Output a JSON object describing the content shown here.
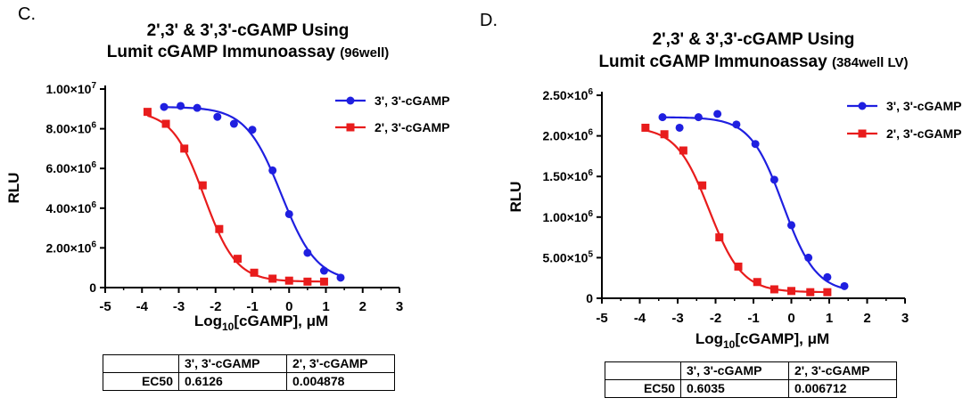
{
  "panels": [
    {
      "letter": "C.",
      "title_line1": "2',3' & 3',3'-cGAMP Using",
      "title_line2": "Lumit cGAMP Immunoassay",
      "title_suffix": "(96well)",
      "ylabel": "RLU",
      "xlabel_main": "Log",
      "xlabel_sub": "10",
      "xlabel_rest": "[cGAMP], μM",
      "x_ticks": [
        "-5",
        "-4",
        "-3",
        "-2",
        "-1",
        "0",
        "1",
        "2",
        "3"
      ],
      "y_ticks": [
        {
          "value": 0,
          "label": "0",
          "exp": ""
        },
        {
          "value": 2000000,
          "label": "2.00×10",
          "exp": "6"
        },
        {
          "value": 4000000,
          "label": "4.00×10",
          "exp": "6"
        },
        {
          "value": 6000000,
          "label": "6.00×10",
          "exp": "6"
        },
        {
          "value": 8000000,
          "label": "8.00×10",
          "exp": "6"
        },
        {
          "value": 10000000,
          "label": "1.00×10",
          "exp": "7"
        }
      ],
      "legend": [
        "3', 3'-cGAMP",
        "2', 3'-cGAMP"
      ],
      "table": {
        "header": [
          "",
          "3', 3'-cGAMP",
          "2', 3'-cGAMP"
        ],
        "row": [
          "EC50",
          "0.6126",
          "0.004878"
        ]
      }
    },
    {
      "letter": "D.",
      "title_line1": "2',3' & 3',3'-cGAMP Using",
      "title_line2": "Lumit cGAMP Immunoassay",
      "title_suffix": "(384well LV)",
      "ylabel": "RLU",
      "xlabel_main": "Log",
      "xlabel_sub": "10",
      "xlabel_rest": "[cGAMP], μM",
      "x_ticks": [
        "-5",
        "-4",
        "-3",
        "-2",
        "-1",
        "0",
        "1",
        "2",
        "3"
      ],
      "y_ticks": [
        {
          "value": 0,
          "label": "0",
          "exp": ""
        },
        {
          "value": 500000,
          "label": "5.00×10",
          "exp": "5"
        },
        {
          "value": 1000000,
          "label": "1.00×10",
          "exp": "6"
        },
        {
          "value": 1500000,
          "label": "1.50×10",
          "exp": "6"
        },
        {
          "value": 2000000,
          "label": "2.00×10",
          "exp": "6"
        },
        {
          "value": 2500000,
          "label": "2.50×10",
          "exp": "6"
        }
      ],
      "legend": [
        "3', 3'-cGAMP",
        "2', 3'-cGAMP"
      ],
      "table": {
        "header": [
          "",
          "3', 3'-cGAMP",
          "2', 3'-cGAMP"
        ],
        "row": [
          "EC50",
          "0.6035",
          "0.006712"
        ]
      }
    }
  ],
  "colors": {
    "series_33": "#1f1fe0",
    "series_23": "#e81c1c",
    "axis": "#000000"
  },
  "chart_data": [
    {
      "type": "scatter",
      "title": "2',3' & 3',3'-cGAMP Using Lumit cGAMP Immunoassay (96well)",
      "xlabel": "Log10[cGAMP], μM",
      "ylabel": "RLU",
      "xlim": [
        -5,
        3
      ],
      "ylim": [
        0,
        10000000
      ],
      "series": [
        {
          "name": "3', 3'-cGAMP",
          "marker": "circle",
          "color": "#1f1fe0",
          "x": [
            -3.4,
            -2.95,
            -2.5,
            -1.95,
            -1.5,
            -1.0,
            -0.45,
            0.0,
            0.5,
            0.95,
            1.4
          ],
          "y": [
            9100000,
            9150000,
            9050000,
            8600000,
            8250000,
            7950000,
            5900000,
            3700000,
            1750000,
            850000,
            500000
          ],
          "fit": {
            "top": 9100000,
            "bottom": 300000,
            "log_ec50": -0.213,
            "hill": -0.9
          }
        },
        {
          "name": "2', 3'-cGAMP",
          "marker": "square",
          "color": "#e81c1c",
          "x": [
            -3.85,
            -3.35,
            -2.85,
            -2.35,
            -1.9,
            -1.4,
            -0.95,
            -0.45,
            0.0,
            0.5,
            0.95
          ],
          "y": [
            8850000,
            8250000,
            7000000,
            5150000,
            2950000,
            1450000,
            750000,
            450000,
            350000,
            300000,
            300000
          ],
          "fit": {
            "top": 8900000,
            "bottom": 300000,
            "log_ec50": -2.312,
            "hill": -1.0
          }
        }
      ]
    },
    {
      "type": "scatter",
      "title": "2',3' & 3',3'-cGAMP Using Lumit cGAMP Immunoassay (384well LV)",
      "xlabel": "Log10[cGAMP], μM",
      "ylabel": "RLU",
      "xlim": [
        -5,
        3
      ],
      "ylim": [
        0,
        2500000
      ],
      "series": [
        {
          "name": "3', 3'-cGAMP",
          "marker": "circle",
          "color": "#1f1fe0",
          "x": [
            -3.4,
            -2.95,
            -2.45,
            -1.95,
            -1.45,
            -0.95,
            -0.45,
            0.0,
            0.45,
            0.95,
            1.4
          ],
          "y": [
            2230000,
            2100000,
            2230000,
            2270000,
            2140000,
            1900000,
            1460000,
            900000,
            500000,
            260000,
            150000
          ],
          "fit": {
            "top": 2230000,
            "bottom": 70000,
            "log_ec50": -0.219,
            "hill": -1.0
          }
        },
        {
          "name": "2', 3'-cGAMP",
          "marker": "square",
          "color": "#e81c1c",
          "x": [
            -3.85,
            -3.35,
            -2.85,
            -2.35,
            -1.9,
            -1.4,
            -0.9,
            -0.45,
            0.0,
            0.5,
            0.95
          ],
          "y": [
            2100000,
            2020000,
            1820000,
            1390000,
            750000,
            390000,
            200000,
            110000,
            90000,
            75000,
            75000
          ],
          "fit": {
            "top": 2110000,
            "bottom": 75000,
            "log_ec50": -2.173,
            "hill": -1.0
          }
        }
      ]
    }
  ]
}
